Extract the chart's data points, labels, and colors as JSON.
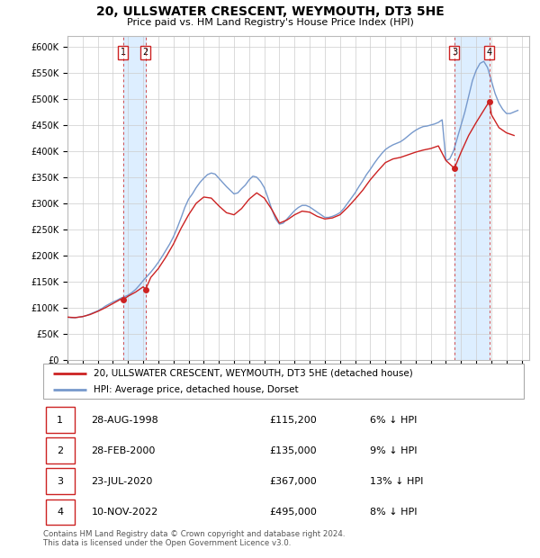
{
  "title": "20, ULLSWATER CRESCENT, WEYMOUTH, DT3 5HE",
  "subtitle": "Price paid vs. HM Land Registry's House Price Index (HPI)",
  "xlim_start": 1995.0,
  "xlim_end": 2025.5,
  "ylim_min": 0,
  "ylim_max": 620000,
  "yticks": [
    0,
    50000,
    100000,
    150000,
    200000,
    250000,
    300000,
    350000,
    400000,
    450000,
    500000,
    550000,
    600000
  ],
  "ytick_labels": [
    "£0",
    "£50K",
    "£100K",
    "£150K",
    "£200K",
    "£250K",
    "£300K",
    "£350K",
    "£400K",
    "£450K",
    "£500K",
    "£550K",
    "£600K"
  ],
  "background_color": "#ffffff",
  "plot_bg_color": "#ffffff",
  "grid_color": "#cccccc",
  "purchases": [
    {
      "index": 1,
      "date_num": 1998.66,
      "price": 115200,
      "label": "28-AUG-1998",
      "price_str": "£115,200",
      "pct": "6%"
    },
    {
      "index": 2,
      "date_num": 2000.16,
      "price": 135000,
      "label": "28-FEB-2000",
      "price_str": "£135,000",
      "pct": "9%"
    },
    {
      "index": 3,
      "date_num": 2020.56,
      "price": 367000,
      "label": "23-JUL-2020",
      "price_str": "£367,000",
      "pct": "13%"
    },
    {
      "index": 4,
      "date_num": 2022.86,
      "price": 495000,
      "label": "10-NOV-2022",
      "price_str": "£495,000",
      "pct": "8%"
    }
  ],
  "hpi_line_color": "#7799cc",
  "price_line_color": "#cc2222",
  "purchase_marker_color": "#cc2222",
  "purchase_vline_color": "#cc2222",
  "highlight_fill_color": "#ddeeff",
  "box_edge_color": "#cc2222",
  "legend_label_price": "20, ULLSWATER CRESCENT, WEYMOUTH, DT3 5HE (detached house)",
  "legend_label_hpi": "HPI: Average price, detached house, Dorset",
  "footer_line1": "Contains HM Land Registry data © Crown copyright and database right 2024.",
  "footer_line2": "This data is licensed under the Open Government Licence v3.0.",
  "hpi_data_x": [
    1995.0,
    1995.25,
    1995.5,
    1995.75,
    1996.0,
    1996.25,
    1996.5,
    1996.75,
    1997.0,
    1997.25,
    1997.5,
    1997.75,
    1998.0,
    1998.25,
    1998.5,
    1998.75,
    1999.0,
    1999.25,
    1999.5,
    1999.75,
    2000.0,
    2000.25,
    2000.5,
    2000.75,
    2001.0,
    2001.25,
    2001.5,
    2001.75,
    2002.0,
    2002.25,
    2002.5,
    2002.75,
    2003.0,
    2003.25,
    2003.5,
    2003.75,
    2004.0,
    2004.25,
    2004.5,
    2004.75,
    2005.0,
    2005.25,
    2005.5,
    2005.75,
    2006.0,
    2006.25,
    2006.5,
    2006.75,
    2007.0,
    2007.25,
    2007.5,
    2007.75,
    2008.0,
    2008.25,
    2008.5,
    2008.75,
    2009.0,
    2009.25,
    2009.5,
    2009.75,
    2010.0,
    2010.25,
    2010.5,
    2010.75,
    2011.0,
    2011.25,
    2011.5,
    2011.75,
    2012.0,
    2012.25,
    2012.5,
    2012.75,
    2013.0,
    2013.25,
    2013.5,
    2013.75,
    2014.0,
    2014.25,
    2014.5,
    2014.75,
    2015.0,
    2015.25,
    2015.5,
    2015.75,
    2016.0,
    2016.25,
    2016.5,
    2016.75,
    2017.0,
    2017.25,
    2017.5,
    2017.75,
    2018.0,
    2018.25,
    2018.5,
    2018.75,
    2019.0,
    2019.25,
    2019.5,
    2019.75,
    2020.0,
    2020.25,
    2020.5,
    2020.75,
    2021.0,
    2021.25,
    2021.5,
    2021.75,
    2022.0,
    2022.25,
    2022.5,
    2022.75,
    2023.0,
    2023.25,
    2023.5,
    2023.75,
    2024.0,
    2024.25,
    2024.5,
    2024.75
  ],
  "hpi_data_y": [
    82000,
    81000,
    81000,
    82000,
    83000,
    85000,
    88000,
    91000,
    94000,
    98000,
    103000,
    107000,
    111000,
    114000,
    118000,
    121000,
    124000,
    129000,
    135000,
    143000,
    152000,
    160000,
    168000,
    177000,
    187000,
    198000,
    210000,
    222000,
    236000,
    253000,
    272000,
    292000,
    308000,
    318000,
    330000,
    340000,
    348000,
    355000,
    358000,
    356000,
    348000,
    340000,
    332000,
    325000,
    318000,
    320000,
    328000,
    335000,
    345000,
    352000,
    350000,
    342000,
    330000,
    310000,
    288000,
    270000,
    260000,
    262000,
    270000,
    278000,
    286000,
    292000,
    296000,
    296000,
    293000,
    288000,
    283000,
    278000,
    273000,
    273000,
    275000,
    278000,
    282000,
    290000,
    300000,
    310000,
    320000,
    332000,
    343000,
    355000,
    365000,
    376000,
    386000,
    395000,
    403000,
    408000,
    412000,
    415000,
    418000,
    423000,
    429000,
    435000,
    440000,
    444000,
    447000,
    448000,
    450000,
    452000,
    455000,
    460000,
    382000,
    385000,
    400000,
    425000,
    450000,
    475000,
    505000,
    535000,
    555000,
    568000,
    572000,
    560000,
    535000,
    510000,
    492000,
    480000,
    472000,
    472000,
    475000,
    478000
  ],
  "price_data_x": [
    1995.0,
    1995.5,
    1996.0,
    1996.5,
    1997.0,
    1997.5,
    1998.0,
    1998.5,
    1998.66,
    1999.0,
    1999.5,
    2000.0,
    2000.16,
    2000.5,
    2001.0,
    2001.5,
    2002.0,
    2002.5,
    2003.0,
    2003.5,
    2004.0,
    2004.5,
    2005.0,
    2005.5,
    2006.0,
    2006.5,
    2007.0,
    2007.5,
    2008.0,
    2008.5,
    2009.0,
    2009.5,
    2010.0,
    2010.5,
    2011.0,
    2011.5,
    2012.0,
    2012.5,
    2013.0,
    2013.5,
    2014.0,
    2014.5,
    2015.0,
    2015.5,
    2016.0,
    2016.5,
    2017.0,
    2017.5,
    2018.0,
    2018.5,
    2019.0,
    2019.5,
    2020.0,
    2020.56,
    2021.0,
    2021.5,
    2022.0,
    2022.86,
    2023.0,
    2023.5,
    2024.0,
    2024.5
  ],
  "price_data_y": [
    82000,
    81000,
    83000,
    87000,
    93000,
    100000,
    108000,
    116000,
    115200,
    122000,
    130000,
    140000,
    135000,
    158000,
    175000,
    197000,
    222000,
    252000,
    278000,
    300000,
    312000,
    310000,
    295000,
    282000,
    278000,
    290000,
    308000,
    320000,
    310000,
    288000,
    262000,
    268000,
    278000,
    285000,
    283000,
    275000,
    270000,
    272000,
    278000,
    292000,
    308000,
    325000,
    345000,
    362000,
    378000,
    385000,
    388000,
    393000,
    398000,
    402000,
    405000,
    410000,
    382000,
    367000,
    398000,
    430000,
    455000,
    495000,
    470000,
    445000,
    435000,
    430000
  ]
}
